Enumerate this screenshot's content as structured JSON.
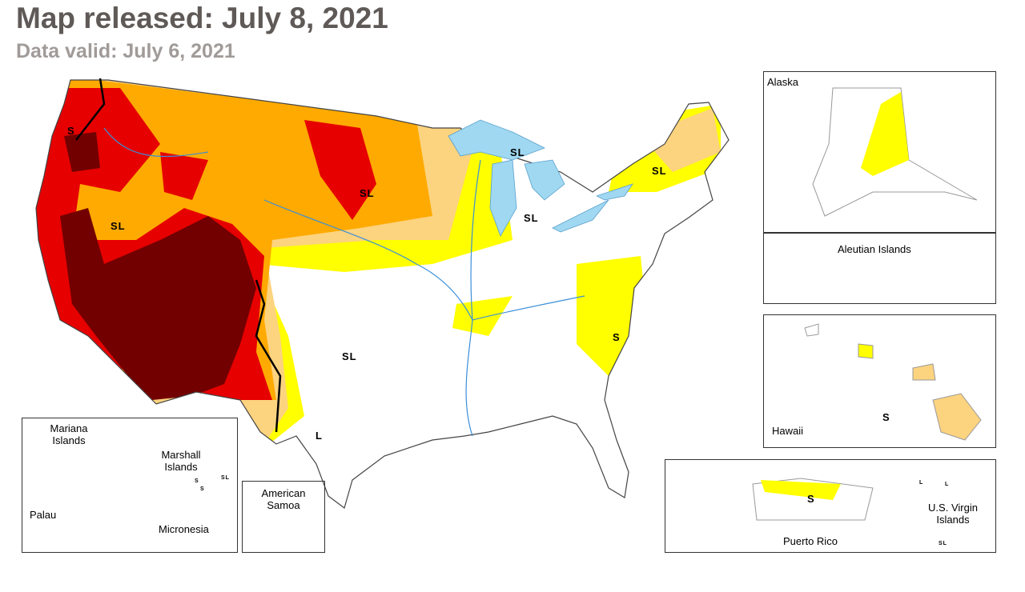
{
  "header": {
    "title": "Map released: July 8, 2021",
    "subtitle": "Data valid: July 6, 2021"
  },
  "conus": {
    "impact_labels": [
      "S",
      "SL",
      "SL",
      "SL",
      "SL",
      "SL",
      "SL",
      "L",
      "S"
    ]
  },
  "insets": {
    "alaska": {
      "label": "Alaska"
    },
    "aleutian": {
      "label": "Aleutian Islands"
    },
    "hawaii": {
      "label": "Hawaii",
      "impact_label": "S"
    },
    "puerto_rico": {
      "label": "Puerto Rico",
      "impact_label": "S"
    },
    "virgin_islands": {
      "label": "U.S. Virgin Islands",
      "impact_labels": [
        "L",
        "L",
        "SL"
      ]
    },
    "pacific": {
      "labels": [
        "Mariana Islands",
        "Marshall Islands",
        "Palau",
        "Micronesia"
      ],
      "impact_labels": [
        "S",
        "S",
        "SL"
      ]
    },
    "samoa": {
      "label": "American Samoa"
    }
  }
}
